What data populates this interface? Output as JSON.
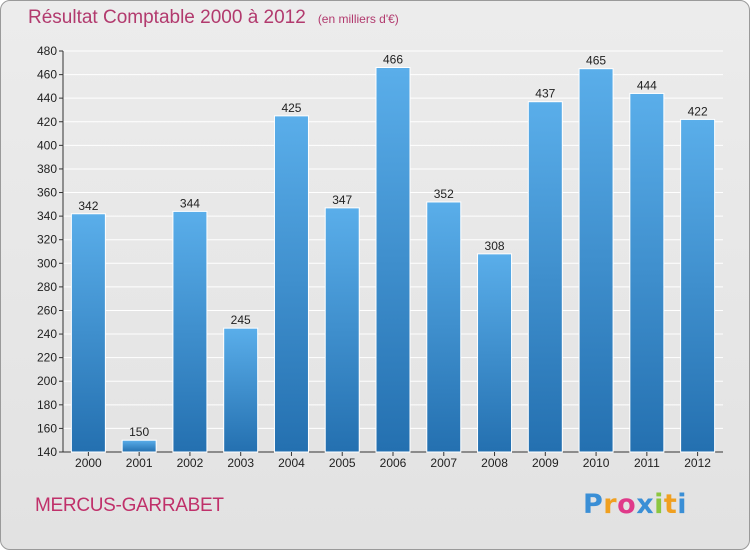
{
  "title": "Résultat Comptable 2000 à 2012",
  "subtitle": "(en milliers d'€)",
  "commune": "MERCUS-GARRABET",
  "logo": {
    "letters": [
      "P",
      "r",
      "o",
      "x",
      "i",
      "t",
      "i"
    ],
    "colors": [
      "#3a8fd6",
      "#f0a020",
      "#e03a8a",
      "#3a8fd6",
      "#8cc63f",
      "#f0a020",
      "#3a8fd6"
    ]
  },
  "colors": {
    "bar_top": "#5aaeea",
    "bar_bottom": "#2470b0",
    "grid": "#ffffff",
    "axis": "#333333"
  },
  "chart_data": {
    "type": "bar",
    "title": "Résultat Comptable 2000 à 2012",
    "subtitle": "(en milliers d'€)",
    "categories": [
      "2000",
      "2001",
      "2002",
      "2003",
      "2004",
      "2005",
      "2006",
      "2007",
      "2008",
      "2009",
      "2010",
      "2011",
      "2012"
    ],
    "values": [
      342,
      150,
      344,
      245,
      425,
      347,
      466,
      352,
      308,
      437,
      465,
      444,
      422
    ],
    "ylim": [
      140,
      480
    ],
    "yticks": [
      140,
      160,
      180,
      200,
      220,
      240,
      260,
      280,
      300,
      320,
      340,
      360,
      380,
      400,
      420,
      440,
      460,
      480
    ],
    "grid": true,
    "xlabel": "",
    "ylabel": ""
  }
}
